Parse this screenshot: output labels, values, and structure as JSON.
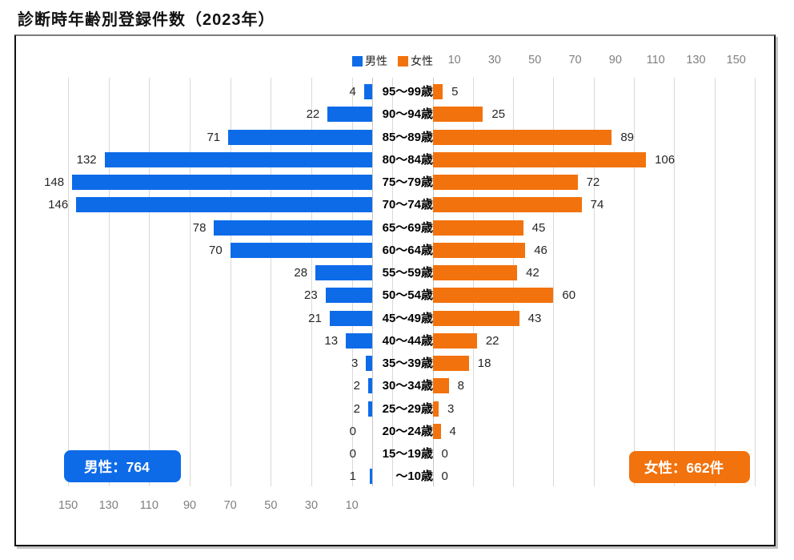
{
  "title": "診断時年齢別登録件数（2023年）",
  "legend": {
    "male": "男性",
    "female": "女性"
  },
  "badges": {
    "male": "男性：764",
    "female": "女性：662件"
  },
  "colors": {
    "male": "#0d6be8",
    "female": "#f2720d",
    "grid": "#d9d9d9",
    "axis_text": "#7f7f7f"
  },
  "chart_data": {
    "type": "bar",
    "variant": "population-pyramid",
    "categories": [
      "95〜99歳",
      "90〜94歳",
      "85〜89歳",
      "80〜84歳",
      "75〜79歳",
      "70〜74歳",
      "65〜69歳",
      "60〜64歳",
      "55〜59歳",
      "50〜54歳",
      "45〜49歳",
      "40〜44歳",
      "35〜39歳",
      "30〜34歳",
      "25〜29歳",
      "20〜24歳",
      "15〜19歳",
      "〜10歳"
    ],
    "series": [
      {
        "name": "男性",
        "side": "left",
        "values": [
          4,
          22,
          71,
          132,
          148,
          146,
          78,
          70,
          28,
          23,
          21,
          13,
          3,
          2,
          2,
          0,
          0,
          1
        ],
        "total": 764
      },
      {
        "name": "女性",
        "side": "right",
        "values": [
          5,
          25,
          89,
          106,
          72,
          74,
          45,
          46,
          42,
          60,
          43,
          22,
          18,
          8,
          3,
          4,
          0,
          0
        ],
        "total": 662
      }
    ],
    "x_ticks_left": [
      150,
      130,
      110,
      90,
      70,
      50,
      30,
      10
    ],
    "x_ticks_right": [
      10,
      30,
      50,
      70,
      90,
      110,
      130,
      150
    ],
    "xlim": [
      0,
      160
    ],
    "grid": true,
    "legend_position": "top"
  }
}
